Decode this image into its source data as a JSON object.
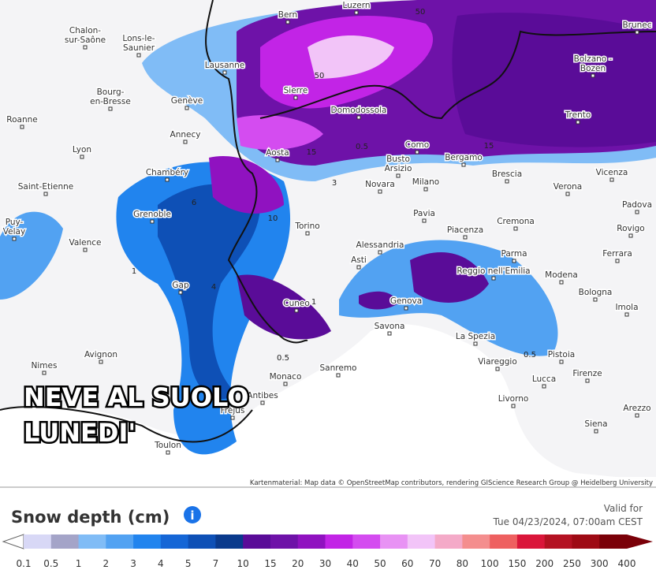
{
  "map": {
    "overlay_text": [
      "NEVE AL SUOLO",
      "LUNEDI'"
    ],
    "attribution": "Kartenmaterial: Map data © OpenStreetMap contributors, rendering GIScience Research Group @ Heidelberg University",
    "cities": [
      [
        "Chalon-",
        "sur-Saône"
      ],
      "Bern",
      "Luzern",
      [
        "Lons-le-",
        "Saunier"
      ],
      "Brunec",
      "Lausanne",
      [
        "Bolzano -",
        "Bozen"
      ],
      [
        "Bourg-",
        "en-Bresse"
      ],
      "Sierre",
      "Genève",
      "Domodossola",
      "Trento",
      "Roanne",
      "Annecy",
      "Lyon",
      "Aosta",
      "Como",
      [
        "Busto",
        "Arsizio"
      ],
      "Bergamo",
      "Brescia",
      "Vicenza",
      "Verona",
      "Chambéry",
      "Saint-Etienne",
      "Novara",
      "Milano",
      "Grenoble",
      "Padova",
      "Pavia",
      "Cremona",
      [
        "Puy-",
        "Velay"
      ],
      "Torino",
      "Piacenza",
      "Rovigo",
      "Alessandria",
      "Valence",
      "Parma",
      "Ferrara",
      "Asti",
      "Reggio nell'Emilia",
      "Modena",
      "Gap",
      "Bologna",
      "Cuneo",
      "Genova",
      "Imola",
      "Savona",
      "La Spezia",
      "Avignon",
      "Pistoia",
      "Nimes",
      "Viareggio",
      "Sanremo",
      "Firenze",
      "Lucca",
      "Monaco",
      "Antibes",
      "Fréjus",
      "Livorno",
      "Arezzo",
      "Siena",
      "Toulon"
    ],
    "contour_labels": [
      "50",
      "50",
      "15",
      "10",
      "6",
      "4",
      "1",
      "0.5",
      "0.5",
      "0.5",
      "1",
      "3",
      "15"
    ]
  },
  "legend": {
    "title": "Snow depth (cm)",
    "valid_label": "Valid for",
    "valid_time": "Tue 04/23/2024, 07:00am CEST",
    "ticks": [
      "0.1",
      "0.5",
      "1",
      "2",
      "3",
      "4",
      "5",
      "7",
      "10",
      "15",
      "20",
      "30",
      "40",
      "50",
      "60",
      "70",
      "80",
      "100",
      "150",
      "200",
      "250",
      "300",
      "400"
    ],
    "colors": [
      "#d8d8f6",
      "#a4a4c8",
      "#80bcf6",
      "#52a2f2",
      "#2184ee",
      "#1566d6",
      "#0e50b6",
      "#0a3a8c",
      "#5a0c98",
      "#6e12a8",
      "#9012c0",
      "#c224e6",
      "#d44cf0",
      "#e892f4",
      "#f2c4f8",
      "#f4aac8",
      "#f48e8e",
      "#ee6060",
      "#da163a",
      "#b41222",
      "#9e0a14",
      "#7a0008"
    ]
  }
}
